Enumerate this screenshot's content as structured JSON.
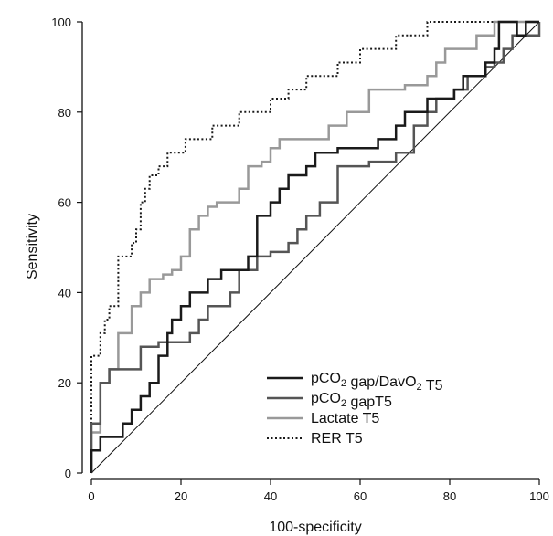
{
  "chart_data": {
    "type": "line",
    "title": "",
    "xlabel": "100-specificity",
    "ylabel": "Sensitivity",
    "xlim": [
      0,
      100
    ],
    "ylim": [
      0,
      100
    ],
    "xticks": [
      0,
      20,
      40,
      60,
      80,
      100
    ],
    "yticks": [
      0,
      20,
      40,
      60,
      80,
      100
    ],
    "xtick_labels": [
      "0",
      "20",
      "40",
      "60",
      "80",
      "100"
    ],
    "ytick_labels": [
      "0",
      "20",
      "40",
      "60",
      "80",
      "100"
    ],
    "grid": false,
    "legend_position": "bottom-right",
    "reference_line": [
      [
        0,
        0
      ],
      [
        100,
        100
      ]
    ],
    "series": [
      {
        "name_main": "pCO",
        "name_sub": "2",
        "name_mid": " gap/DavO",
        "name_sub2": "2",
        "name_end": " T5",
        "color": "#1a1a1a",
        "dash": "solid",
        "points": [
          [
            0,
            0
          ],
          [
            0,
            5
          ],
          [
            2,
            5
          ],
          [
            2,
            8
          ],
          [
            7,
            8
          ],
          [
            7,
            11
          ],
          [
            9,
            11
          ],
          [
            9,
            14
          ],
          [
            11,
            14
          ],
          [
            11,
            17
          ],
          [
            13,
            17
          ],
          [
            13,
            20
          ],
          [
            15,
            20
          ],
          [
            15,
            26
          ],
          [
            17,
            26
          ],
          [
            17,
            31
          ],
          [
            18,
            31
          ],
          [
            18,
            34
          ],
          [
            20,
            34
          ],
          [
            20,
            37
          ],
          [
            22,
            37
          ],
          [
            22,
            40
          ],
          [
            26,
            40
          ],
          [
            26,
            43
          ],
          [
            29,
            43
          ],
          [
            29,
            45
          ],
          [
            35,
            45
          ],
          [
            35,
            48
          ],
          [
            37,
            48
          ],
          [
            37,
            57
          ],
          [
            40,
            57
          ],
          [
            40,
            60
          ],
          [
            42,
            60
          ],
          [
            42,
            63
          ],
          [
            44,
            63
          ],
          [
            44,
            66
          ],
          [
            48,
            66
          ],
          [
            48,
            68
          ],
          [
            50,
            68
          ],
          [
            50,
            71
          ],
          [
            55,
            71
          ],
          [
            55,
            72
          ],
          [
            64,
            72
          ],
          [
            64,
            74
          ],
          [
            68,
            74
          ],
          [
            68,
            77
          ],
          [
            70,
            77
          ],
          [
            70,
            80
          ],
          [
            75,
            80
          ],
          [
            75,
            83
          ],
          [
            81,
            83
          ],
          [
            81,
            85
          ],
          [
            83,
            85
          ],
          [
            83,
            88
          ],
          [
            88,
            88
          ],
          [
            88,
            91
          ],
          [
            90,
            91
          ],
          [
            90,
            94
          ],
          [
            91,
            94
          ],
          [
            91,
            100
          ],
          [
            95,
            100
          ],
          [
            95,
            97
          ],
          [
            97,
            97
          ],
          [
            97,
            100
          ],
          [
            100,
            100
          ]
        ]
      },
      {
        "name_main": "pCO",
        "name_sub": "2",
        "name_mid": " gapT5",
        "name_sub2": "",
        "name_end": "",
        "color": "#555555",
        "dash": "solid",
        "points": [
          [
            0,
            0
          ],
          [
            0,
            11
          ],
          [
            2,
            11
          ],
          [
            2,
            20
          ],
          [
            4,
            20
          ],
          [
            4,
            23
          ],
          [
            11,
            23
          ],
          [
            11,
            28
          ],
          [
            15,
            28
          ],
          [
            15,
            29
          ],
          [
            22,
            29
          ],
          [
            22,
            31
          ],
          [
            24,
            31
          ],
          [
            24,
            34
          ],
          [
            26,
            34
          ],
          [
            26,
            37
          ],
          [
            31,
            37
          ],
          [
            31,
            40
          ],
          [
            33,
            40
          ],
          [
            33,
            45
          ],
          [
            37,
            45
          ],
          [
            37,
            48
          ],
          [
            40,
            48
          ],
          [
            40,
            49
          ],
          [
            44,
            49
          ],
          [
            44,
            51
          ],
          [
            46,
            51
          ],
          [
            46,
            54
          ],
          [
            48,
            54
          ],
          [
            48,
            57
          ],
          [
            51,
            57
          ],
          [
            51,
            60
          ],
          [
            55,
            60
          ],
          [
            55,
            68
          ],
          [
            62,
            68
          ],
          [
            62,
            69
          ],
          [
            68,
            69
          ],
          [
            68,
            71
          ],
          [
            72,
            71
          ],
          [
            72,
            77
          ],
          [
            75,
            77
          ],
          [
            75,
            80
          ],
          [
            77,
            80
          ],
          [
            77,
            83
          ],
          [
            81,
            83
          ],
          [
            81,
            85
          ],
          [
            84,
            85
          ],
          [
            84,
            88
          ],
          [
            88,
            88
          ],
          [
            88,
            90
          ],
          [
            90,
            90
          ],
          [
            90,
            91
          ],
          [
            92,
            91
          ],
          [
            92,
            94
          ],
          [
            94,
            94
          ],
          [
            94,
            97
          ],
          [
            100,
            97
          ],
          [
            100,
            100
          ]
        ]
      },
      {
        "name_main": "Lactate",
        "name_sub": "",
        "name_mid": "",
        "name_sub2": "",
        "name_end": " T5",
        "color": "#999999",
        "dash": "solid",
        "points": [
          [
            0,
            0
          ],
          [
            0,
            9
          ],
          [
            2,
            9
          ],
          [
            2,
            20
          ],
          [
            4,
            20
          ],
          [
            4,
            23
          ],
          [
            6,
            23
          ],
          [
            6,
            31
          ],
          [
            9,
            31
          ],
          [
            9,
            37
          ],
          [
            11,
            37
          ],
          [
            11,
            40
          ],
          [
            13,
            40
          ],
          [
            13,
            43
          ],
          [
            16,
            43
          ],
          [
            16,
            44
          ],
          [
            18,
            44
          ],
          [
            18,
            45
          ],
          [
            20,
            45
          ],
          [
            20,
            48
          ],
          [
            22,
            48
          ],
          [
            22,
            54
          ],
          [
            24,
            54
          ],
          [
            24,
            57
          ],
          [
            26,
            57
          ],
          [
            26,
            59
          ],
          [
            28,
            59
          ],
          [
            28,
            60
          ],
          [
            33,
            60
          ],
          [
            33,
            63
          ],
          [
            35,
            63
          ],
          [
            35,
            68
          ],
          [
            38,
            68
          ],
          [
            38,
            69
          ],
          [
            40,
            69
          ],
          [
            40,
            72
          ],
          [
            42,
            72
          ],
          [
            42,
            74
          ],
          [
            53,
            74
          ],
          [
            53,
            77
          ],
          [
            57,
            77
          ],
          [
            57,
            80
          ],
          [
            62,
            80
          ],
          [
            62,
            85
          ],
          [
            70,
            85
          ],
          [
            70,
            86
          ],
          [
            75,
            86
          ],
          [
            75,
            88
          ],
          [
            77,
            88
          ],
          [
            77,
            91
          ],
          [
            79,
            91
          ],
          [
            79,
            94
          ],
          [
            86,
            94
          ],
          [
            86,
            97
          ],
          [
            90,
            97
          ],
          [
            90,
            100
          ],
          [
            100,
            100
          ]
        ]
      },
      {
        "name_main": "RER",
        "name_sub": "",
        "name_mid": "",
        "name_sub2": "",
        "name_end": " T5",
        "color": "#1a1a1a",
        "dash": "dotted",
        "points": [
          [
            0,
            0
          ],
          [
            0,
            20
          ],
          [
            0,
            26
          ],
          [
            2,
            26
          ],
          [
            2,
            31
          ],
          [
            3,
            31
          ],
          [
            3,
            34
          ],
          [
            4,
            34
          ],
          [
            4,
            37
          ],
          [
            6,
            37
          ],
          [
            6,
            40
          ],
          [
            6,
            48
          ],
          [
            9,
            48
          ],
          [
            9,
            51
          ],
          [
            10,
            51
          ],
          [
            10,
            54
          ],
          [
            11,
            54
          ],
          [
            11,
            60
          ],
          [
            12,
            60
          ],
          [
            12,
            63
          ],
          [
            13,
            63
          ],
          [
            13,
            66
          ],
          [
            15,
            66
          ],
          [
            15,
            68
          ],
          [
            17,
            68
          ],
          [
            17,
            71
          ],
          [
            21,
            71
          ],
          [
            21,
            74
          ],
          [
            27,
            74
          ],
          [
            27,
            77
          ],
          [
            33,
            77
          ],
          [
            33,
            80
          ],
          [
            40,
            80
          ],
          [
            40,
            83
          ],
          [
            44,
            83
          ],
          [
            44,
            85
          ],
          [
            48,
            85
          ],
          [
            48,
            88
          ],
          [
            55,
            88
          ],
          [
            55,
            91
          ],
          [
            60,
            91
          ],
          [
            60,
            94
          ],
          [
            68,
            94
          ],
          [
            68,
            97
          ],
          [
            75,
            97
          ],
          [
            75,
            100
          ],
          [
            100,
            100
          ]
        ]
      }
    ]
  }
}
